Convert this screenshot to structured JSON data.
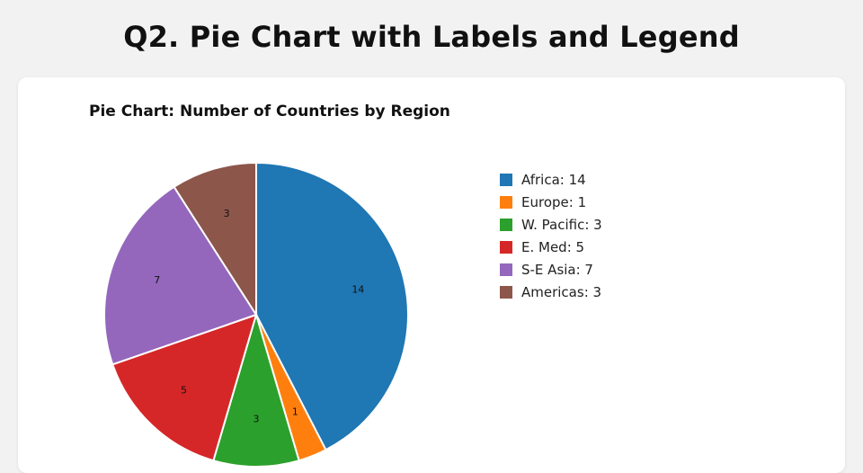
{
  "page": {
    "heading": "Q2. Pie Chart with Labels and Legend"
  },
  "chart_data": {
    "type": "pie",
    "title": "Pie Chart: Number of Countries by Region",
    "categories": [
      "Africa",
      "Europe",
      "W. Pacific",
      "E. Med",
      "S-E Asia",
      "Americas"
    ],
    "values": [
      14,
      1,
      3,
      5,
      7,
      3
    ],
    "colors": [
      "#1f77b4",
      "#ff7f0e",
      "#2ca02c",
      "#d62728",
      "#9467bd",
      "#8c564b"
    ],
    "legend_labels": [
      "Africa: 14",
      "Europe: 1",
      "W. Pacific: 3",
      "E. Med: 5",
      "S-E Asia: 7",
      "Americas: 3"
    ],
    "slice_labels": [
      "14",
      "1",
      "3",
      "5",
      "7",
      "3"
    ],
    "legend_position": "right",
    "start_angle": "top",
    "direction": "clockwise"
  }
}
